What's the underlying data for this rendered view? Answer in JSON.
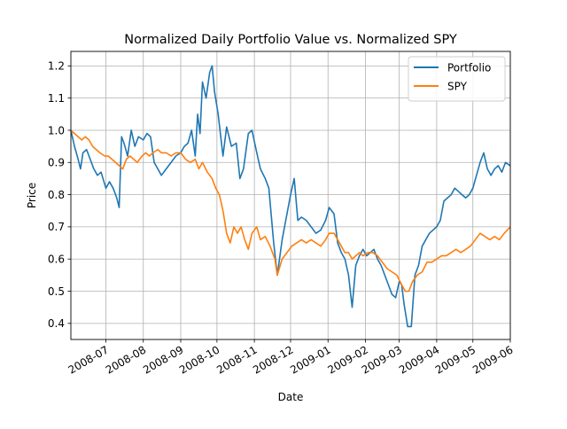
{
  "chart_data": {
    "type": "line",
    "title": "Normalized Daily Portfolio Value vs. Normalized SPY",
    "xlabel": "Date",
    "ylabel": "Price",
    "xlim": [
      "2008-06-02",
      "2009-06-01"
    ],
    "ylim": [
      0.35,
      1.245
    ],
    "grid": true,
    "legend_position": "top-right",
    "x_ticks": [
      {
        "date": "2008-07-01",
        "label": "2008-07"
      },
      {
        "date": "2008-08-01",
        "label": "2008-08"
      },
      {
        "date": "2008-09-01",
        "label": "2008-09"
      },
      {
        "date": "2008-10-01",
        "label": "2008-10"
      },
      {
        "date": "2008-11-01",
        "label": "2008-11"
      },
      {
        "date": "2008-12-01",
        "label": "2008-12"
      },
      {
        "date": "2009-01-01",
        "label": "2009-01"
      },
      {
        "date": "2009-02-01",
        "label": "2009-02"
      },
      {
        "date": "2009-03-01",
        "label": "2009-03"
      },
      {
        "date": "2009-04-01",
        "label": "2009-04"
      },
      {
        "date": "2009-05-01",
        "label": "2009-05"
      },
      {
        "date": "2009-06-01",
        "label": "2009-06"
      }
    ],
    "y_ticks": [
      {
        "value": 0.4,
        "label": "0.4"
      },
      {
        "value": 0.5,
        "label": "0.5"
      },
      {
        "value": 0.6,
        "label": "0.6"
      },
      {
        "value": 0.7,
        "label": "0.7"
      },
      {
        "value": 0.8,
        "label": "0.8"
      },
      {
        "value": 0.9,
        "label": "0.9"
      },
      {
        "value": 1.0,
        "label": "1.0"
      },
      {
        "value": 1.1,
        "label": "1.1"
      },
      {
        "value": 1.2,
        "label": "1.2"
      }
    ],
    "series": [
      {
        "name": "Portfolio",
        "color": "#1f77b4",
        "points": [
          [
            "2008-06-02",
            1.0
          ],
          [
            "2008-06-05",
            0.95
          ],
          [
            "2008-06-08",
            0.91
          ],
          [
            "2008-06-10",
            0.88
          ],
          [
            "2008-06-12",
            0.93
          ],
          [
            "2008-06-15",
            0.94
          ],
          [
            "2008-06-18",
            0.91
          ],
          [
            "2008-06-21",
            0.88
          ],
          [
            "2008-06-24",
            0.86
          ],
          [
            "2008-06-27",
            0.87
          ],
          [
            "2008-07-01",
            0.82
          ],
          [
            "2008-07-04",
            0.84
          ],
          [
            "2008-07-07",
            0.82
          ],
          [
            "2008-07-10",
            0.79
          ],
          [
            "2008-07-12",
            0.76
          ],
          [
            "2008-07-14",
            0.98
          ],
          [
            "2008-07-16",
            0.96
          ],
          [
            "2008-07-19",
            0.92
          ],
          [
            "2008-07-22",
            1.0
          ],
          [
            "2008-07-25",
            0.95
          ],
          [
            "2008-07-28",
            0.98
          ],
          [
            "2008-08-01",
            0.97
          ],
          [
            "2008-08-04",
            0.99
          ],
          [
            "2008-08-07",
            0.98
          ],
          [
            "2008-08-10",
            0.9
          ],
          [
            "2008-08-13",
            0.88
          ],
          [
            "2008-08-16",
            0.86
          ],
          [
            "2008-08-20",
            0.88
          ],
          [
            "2008-08-24",
            0.9
          ],
          [
            "2008-08-28",
            0.92
          ],
          [
            "2008-09-01",
            0.93
          ],
          [
            "2008-09-04",
            0.95
          ],
          [
            "2008-09-07",
            0.96
          ],
          [
            "2008-09-10",
            1.0
          ],
          [
            "2008-09-13",
            0.92
          ],
          [
            "2008-09-15",
            1.05
          ],
          [
            "2008-09-17",
            0.99
          ],
          [
            "2008-09-19",
            1.15
          ],
          [
            "2008-09-22",
            1.1
          ],
          [
            "2008-09-25",
            1.18
          ],
          [
            "2008-09-27",
            1.2
          ],
          [
            "2008-09-29",
            1.12
          ],
          [
            "2008-10-02",
            1.05
          ],
          [
            "2008-10-06",
            0.92
          ],
          [
            "2008-10-09",
            1.01
          ],
          [
            "2008-10-13",
            0.95
          ],
          [
            "2008-10-17",
            0.96
          ],
          [
            "2008-10-20",
            0.85
          ],
          [
            "2008-10-23",
            0.88
          ],
          [
            "2008-10-27",
            0.99
          ],
          [
            "2008-10-30",
            1.0
          ],
          [
            "2008-11-03",
            0.93
          ],
          [
            "2008-11-06",
            0.88
          ],
          [
            "2008-11-10",
            0.85
          ],
          [
            "2008-11-13",
            0.82
          ],
          [
            "2008-11-17",
            0.65
          ],
          [
            "2008-11-20",
            0.55
          ],
          [
            "2008-11-24",
            0.66
          ],
          [
            "2008-11-27",
            0.72
          ],
          [
            "2008-12-01",
            0.8
          ],
          [
            "2008-12-04",
            0.85
          ],
          [
            "2008-12-07",
            0.72
          ],
          [
            "2008-12-10",
            0.73
          ],
          [
            "2008-12-14",
            0.72
          ],
          [
            "2008-12-18",
            0.7
          ],
          [
            "2008-12-22",
            0.68
          ],
          [
            "2008-12-26",
            0.69
          ],
          [
            "2008-12-30",
            0.72
          ],
          [
            "2009-01-02",
            0.76
          ],
          [
            "2009-01-06",
            0.74
          ],
          [
            "2009-01-09",
            0.65
          ],
          [
            "2009-01-12",
            0.62
          ],
          [
            "2009-01-15",
            0.6
          ],
          [
            "2009-01-18",
            0.55
          ],
          [
            "2009-01-21",
            0.45
          ],
          [
            "2009-01-24",
            0.58
          ],
          [
            "2009-01-27",
            0.61
          ],
          [
            "2009-01-30",
            0.63
          ],
          [
            "2009-02-02",
            0.61
          ],
          [
            "2009-02-05",
            0.62
          ],
          [
            "2009-02-08",
            0.63
          ],
          [
            "2009-02-11",
            0.6
          ],
          [
            "2009-02-14",
            0.58
          ],
          [
            "2009-02-17",
            0.55
          ],
          [
            "2009-02-20",
            0.52
          ],
          [
            "2009-02-23",
            0.49
          ],
          [
            "2009-02-26",
            0.48
          ],
          [
            "2009-03-01",
            0.53
          ],
          [
            "2009-03-03",
            0.52
          ],
          [
            "2009-03-05",
            0.46
          ],
          [
            "2009-03-08",
            0.39
          ],
          [
            "2009-03-11",
            0.39
          ],
          [
            "2009-03-14",
            0.55
          ],
          [
            "2009-03-17",
            0.58
          ],
          [
            "2009-03-20",
            0.64
          ],
          [
            "2009-03-23",
            0.66
          ],
          [
            "2009-03-26",
            0.68
          ],
          [
            "2009-03-29",
            0.69
          ],
          [
            "2009-04-01",
            0.7
          ],
          [
            "2009-04-04",
            0.72
          ],
          [
            "2009-04-07",
            0.78
          ],
          [
            "2009-04-10",
            0.79
          ],
          [
            "2009-04-13",
            0.8
          ],
          [
            "2009-04-16",
            0.82
          ],
          [
            "2009-04-19",
            0.81
          ],
          [
            "2009-04-22",
            0.8
          ],
          [
            "2009-04-25",
            0.79
          ],
          [
            "2009-04-28",
            0.8
          ],
          [
            "2009-05-01",
            0.82
          ],
          [
            "2009-05-04",
            0.86
          ],
          [
            "2009-05-07",
            0.9
          ],
          [
            "2009-05-10",
            0.93
          ],
          [
            "2009-05-13",
            0.88
          ],
          [
            "2009-05-16",
            0.86
          ],
          [
            "2009-05-19",
            0.88
          ],
          [
            "2009-05-22",
            0.89
          ],
          [
            "2009-05-25",
            0.87
          ],
          [
            "2009-05-28",
            0.9
          ],
          [
            "2009-06-01",
            0.89
          ]
        ]
      },
      {
        "name": "SPY",
        "color": "#ff7f0e",
        "points": [
          [
            "2008-06-02",
            1.0
          ],
          [
            "2008-06-05",
            0.99
          ],
          [
            "2008-06-08",
            0.98
          ],
          [
            "2008-06-11",
            0.97
          ],
          [
            "2008-06-14",
            0.98
          ],
          [
            "2008-06-17",
            0.97
          ],
          [
            "2008-06-20",
            0.95
          ],
          [
            "2008-06-23",
            0.94
          ],
          [
            "2008-06-26",
            0.93
          ],
          [
            "2008-06-30",
            0.92
          ],
          [
            "2008-07-03",
            0.92
          ],
          [
            "2008-07-06",
            0.91
          ],
          [
            "2008-07-09",
            0.9
          ],
          [
            "2008-07-12",
            0.89
          ],
          [
            "2008-07-15",
            0.88
          ],
          [
            "2008-07-18",
            0.91
          ],
          [
            "2008-07-21",
            0.92
          ],
          [
            "2008-07-24",
            0.91
          ],
          [
            "2008-07-27",
            0.9
          ],
          [
            "2008-07-31",
            0.92
          ],
          [
            "2008-08-03",
            0.93
          ],
          [
            "2008-08-06",
            0.92
          ],
          [
            "2008-08-09",
            0.93
          ],
          [
            "2008-08-13",
            0.94
          ],
          [
            "2008-08-16",
            0.93
          ],
          [
            "2008-08-20",
            0.93
          ],
          [
            "2008-08-24",
            0.92
          ],
          [
            "2008-08-28",
            0.93
          ],
          [
            "2008-09-01",
            0.93
          ],
          [
            "2008-09-05",
            0.91
          ],
          [
            "2008-09-09",
            0.9
          ],
          [
            "2008-09-13",
            0.91
          ],
          [
            "2008-09-16",
            0.88
          ],
          [
            "2008-09-19",
            0.9
          ],
          [
            "2008-09-23",
            0.87
          ],
          [
            "2008-09-27",
            0.85
          ],
          [
            "2008-09-30",
            0.82
          ],
          [
            "2008-10-03",
            0.8
          ],
          [
            "2008-10-06",
            0.75
          ],
          [
            "2008-10-09",
            0.68
          ],
          [
            "2008-10-12",
            0.65
          ],
          [
            "2008-10-15",
            0.7
          ],
          [
            "2008-10-18",
            0.68
          ],
          [
            "2008-10-21",
            0.7
          ],
          [
            "2008-10-24",
            0.66
          ],
          [
            "2008-10-27",
            0.63
          ],
          [
            "2008-10-30",
            0.68
          ],
          [
            "2008-11-03",
            0.7
          ],
          [
            "2008-11-06",
            0.66
          ],
          [
            "2008-11-10",
            0.67
          ],
          [
            "2008-11-14",
            0.64
          ],
          [
            "2008-11-18",
            0.6
          ],
          [
            "2008-11-20",
            0.55
          ],
          [
            "2008-11-24",
            0.6
          ],
          [
            "2008-11-28",
            0.62
          ],
          [
            "2008-12-02",
            0.64
          ],
          [
            "2008-12-06",
            0.65
          ],
          [
            "2008-12-10",
            0.66
          ],
          [
            "2008-12-14",
            0.65
          ],
          [
            "2008-12-18",
            0.66
          ],
          [
            "2008-12-22",
            0.65
          ],
          [
            "2008-12-26",
            0.64
          ],
          [
            "2008-12-30",
            0.66
          ],
          [
            "2009-01-02",
            0.68
          ],
          [
            "2009-01-06",
            0.68
          ],
          [
            "2009-01-09",
            0.66
          ],
          [
            "2009-01-12",
            0.64
          ],
          [
            "2009-01-15",
            0.62
          ],
          [
            "2009-01-18",
            0.62
          ],
          [
            "2009-01-21",
            0.6
          ],
          [
            "2009-01-24",
            0.61
          ],
          [
            "2009-01-27",
            0.62
          ],
          [
            "2009-01-30",
            0.61
          ],
          [
            "2009-02-03",
            0.62
          ],
          [
            "2009-02-07",
            0.62
          ],
          [
            "2009-02-11",
            0.61
          ],
          [
            "2009-02-15",
            0.59
          ],
          [
            "2009-02-19",
            0.57
          ],
          [
            "2009-02-23",
            0.56
          ],
          [
            "2009-02-27",
            0.55
          ],
          [
            "2009-03-03",
            0.52
          ],
          [
            "2009-03-06",
            0.5
          ],
          [
            "2009-03-09",
            0.5
          ],
          [
            "2009-03-12",
            0.53
          ],
          [
            "2009-03-16",
            0.55
          ],
          [
            "2009-03-20",
            0.56
          ],
          [
            "2009-03-24",
            0.59
          ],
          [
            "2009-03-28",
            0.59
          ],
          [
            "2009-04-01",
            0.6
          ],
          [
            "2009-04-05",
            0.61
          ],
          [
            "2009-04-09",
            0.61
          ],
          [
            "2009-04-13",
            0.62
          ],
          [
            "2009-04-17",
            0.63
          ],
          [
            "2009-04-21",
            0.62
          ],
          [
            "2009-04-25",
            0.63
          ],
          [
            "2009-04-29",
            0.64
          ],
          [
            "2009-05-03",
            0.66
          ],
          [
            "2009-05-07",
            0.68
          ],
          [
            "2009-05-11",
            0.67
          ],
          [
            "2009-05-15",
            0.66
          ],
          [
            "2009-05-19",
            0.67
          ],
          [
            "2009-05-23",
            0.66
          ],
          [
            "2009-05-27",
            0.68
          ],
          [
            "2009-06-01",
            0.7
          ]
        ]
      }
    ]
  }
}
